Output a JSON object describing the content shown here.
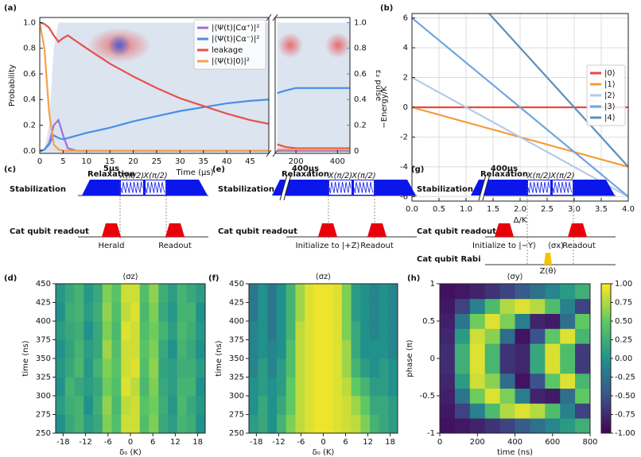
{
  "chart_data": [
    {
      "panel": "(a)",
      "type": "line",
      "xlabel": "Time (μs)",
      "ylabel": "Probability",
      "y2label": "ε₂ pulse",
      "y2color": "#4a8ee8",
      "x": [
        0,
        1,
        2,
        3,
        4,
        5,
        6,
        8,
        10,
        15,
        20,
        25,
        30,
        35,
        40,
        45,
        49,
        110,
        150,
        200,
        300,
        400,
        460
      ],
      "xlims": [
        [
          0,
          49
        ],
        [
          100,
          460
        ]
      ],
      "xticks": [
        0,
        5,
        10,
        15,
        20,
        25,
        30,
        35,
        40,
        45,
        200,
        400
      ],
      "ylim": [
        -0.02,
        1.04
      ],
      "yticks": [
        {
          "value": 0,
          "label": "0.0"
        },
        0.2,
        0.4,
        0.6,
        0.8,
        {
          "value": 1,
          "label": "1.0"
        }
      ],
      "y2lim": [
        -0.02,
        1.04
      ],
      "y2ticks": [
        0,
        0.2,
        0.4,
        0.6,
        0.8,
        {
          "value": 1,
          "label": "1.0"
        }
      ],
      "legend": "upper right",
      "pulse": {
        "color": "#dbe4ef",
        "axis": "y2",
        "values": [
          0,
          0,
          0.2,
          0.8,
          1,
          1,
          1,
          1,
          1,
          1,
          1,
          1,
          1,
          1,
          1,
          1,
          1,
          1,
          1,
          1,
          1,
          1,
          1
        ]
      },
      "series": [
        {
          "name": "|⟨Ψ(t)|Cα⁺⟩|²",
          "color": "#a070dc",
          "values": [
            0,
            0.01,
            0.06,
            0.2,
            0.24,
            0.12,
            0.02,
            0,
            0,
            0,
            0,
            0,
            0,
            0,
            0,
            0,
            0,
            0,
            0,
            0,
            0,
            0,
            0
          ]
        },
        {
          "name": "|⟨Ψ(t)|Cα⁻⟩|²",
          "color": "#4a8ee8",
          "values": [
            0,
            0.01,
            0.05,
            0.12,
            0.1,
            0.09,
            0.1,
            0.12,
            0.14,
            0.18,
            0.23,
            0.27,
            0.31,
            0.34,
            0.37,
            0.39,
            0.4,
            0.45,
            0.47,
            0.49,
            0.49,
            0.49,
            0.49
          ]
        },
        {
          "name": "leakage",
          "color": "#e8504a",
          "values": [
            1,
            0.99,
            0.96,
            0.9,
            0.85,
            0.88,
            0.9,
            0.85,
            0.8,
            0.68,
            0.58,
            0.49,
            0.41,
            0.35,
            0.29,
            0.24,
            0.21,
            0.05,
            0.03,
            0.02,
            0.02,
            0.02,
            0.02
          ]
        },
        {
          "name": "|⟨Ψ(t)|0⟩|²",
          "color": "#f5a04a",
          "values": [
            1,
            0.8,
            0.3,
            0.05,
            0.01,
            0,
            0,
            0,
            0,
            0,
            0,
            0,
            0,
            0,
            0,
            0,
            0,
            0.01,
            0.01,
            0.01,
            0.01,
            0.01,
            0.01
          ]
        }
      ]
    },
    {
      "panel": "(b)",
      "type": "line",
      "xlabel": "Δ/K",
      "ylabel": "−Energy/K",
      "grid": true,
      "x": [
        0,
        4
      ],
      "xlim": [
        0,
        4
      ],
      "xticks": [
        {
          "value": 0,
          "label": "0.0"
        },
        0.5,
        {
          "value": 1,
          "label": "1.0"
        },
        1.5,
        {
          "value": 2,
          "label": "2.0"
        },
        2.5,
        {
          "value": 3,
          "label": "3.0"
        },
        3.5,
        {
          "value": 4,
          "label": "4.0"
        }
      ],
      "ylim": [
        -6.3,
        6.3
      ],
      "yticks": [
        -6,
        -4,
        -2,
        0,
        2,
        4,
        6
      ],
      "legend": "center right",
      "series": [
        {
          "name": "|0⟩",
          "color": "#e8473f",
          "values": [
            0,
            0
          ]
        },
        {
          "name": "|1⟩",
          "color": "#f39c3c",
          "values": [
            0,
            -4
          ]
        },
        {
          "name": "|2⟩",
          "color": "#b4cbe6",
          "values": [
            2,
            -6
          ]
        },
        {
          "name": "|3⟩",
          "color": "#6fa5e0",
          "values": [
            6,
            -6
          ]
        },
        {
          "name": "|4⟩",
          "color": "#5a8fbd",
          "values": [
            12,
            -4
          ]
        }
      ]
    },
    {
      "panel": "(d)",
      "type": "heatmap",
      "title": "⟨σz⟩",
      "xlabel": "δ₀ (K)",
      "ylabel": "time (ns)",
      "xlim": [
        -20,
        20
      ],
      "ylim": [
        250,
        450
      ],
      "xticks": [
        -18,
        -12,
        -6,
        0,
        6,
        12,
        18
      ],
      "yticks": [
        250,
        275,
        300,
        325,
        350,
        375,
        400,
        425,
        450
      ],
      "zlim": [
        -1,
        1
      ],
      "colormap": [
        "#440154",
        "#3b528b",
        "#21918c",
        "#5ec962",
        "#fde725"
      ],
      "x": [
        -18.75,
        -16.25,
        -13.75,
        -11.25,
        -8.75,
        -6.25,
        -3.75,
        -1.25,
        1.25,
        3.75,
        6.25,
        8.75,
        11.25,
        13.75,
        16.25,
        18.75
      ],
      "y": [
        262.5,
        287.5,
        312.5,
        337.5,
        362.5,
        387.5,
        412.5,
        437.5
      ],
      "z": [
        [
          0.0,
          0.2,
          0.3,
          0.1,
          0.2,
          0.6,
          0.4,
          0.85,
          0.85,
          0.4,
          0.6,
          0.2,
          0.1,
          0.3,
          0.25,
          0.0
        ],
        [
          0.1,
          0.25,
          0.3,
          0.0,
          0.25,
          0.65,
          0.35,
          0.8,
          0.85,
          0.45,
          0.55,
          0.25,
          0.05,
          0.35,
          0.2,
          0.05
        ],
        [
          0.0,
          0.3,
          0.2,
          0.1,
          0.2,
          0.55,
          0.4,
          0.9,
          0.8,
          0.35,
          0.6,
          0.2,
          0.1,
          0.3,
          0.3,
          0.0
        ],
        [
          0.05,
          0.2,
          0.35,
          0.05,
          0.3,
          0.6,
          0.45,
          0.85,
          0.9,
          0.4,
          0.65,
          0.15,
          0.1,
          0.25,
          0.25,
          0.1
        ],
        [
          0.0,
          0.15,
          0.3,
          0.1,
          0.2,
          0.7,
          0.4,
          0.85,
          0.85,
          0.45,
          0.6,
          0.2,
          0.0,
          0.3,
          0.2,
          0.0
        ],
        [
          0.1,
          0.2,
          0.25,
          0.0,
          0.2,
          0.6,
          0.35,
          0.9,
          0.85,
          0.4,
          0.55,
          0.3,
          0.1,
          0.35,
          0.25,
          0.05
        ],
        [
          0.0,
          0.25,
          0.3,
          0.1,
          0.25,
          0.65,
          0.4,
          0.8,
          0.9,
          0.35,
          0.6,
          0.2,
          0.05,
          0.3,
          0.3,
          0.0
        ],
        [
          0.05,
          0.2,
          0.3,
          0.05,
          0.2,
          0.6,
          0.45,
          0.85,
          0.85,
          0.4,
          0.65,
          0.25,
          0.1,
          0.3,
          0.2,
          0.1
        ]
      ]
    },
    {
      "panel": "(f)",
      "type": "heatmap",
      "title": "⟨σz⟩",
      "xlabel": "δ₀ (K)",
      "ylabel": "time (ns)",
      "xlim": [
        -20,
        20
      ],
      "ylim": [
        250,
        450
      ],
      "xticks": [
        -18,
        -12,
        -6,
        0,
        6,
        12,
        18
      ],
      "yticks": [
        250,
        275,
        300,
        325,
        350,
        375,
        400,
        425,
        450
      ],
      "zlim": [
        -1,
        1
      ],
      "colormap": [
        "#440154",
        "#3b528b",
        "#21918c",
        "#5ec962",
        "#fde725"
      ],
      "x": [
        -18.75,
        -16.25,
        -13.75,
        -11.25,
        -8.75,
        -6.25,
        -3.75,
        -1.25,
        1.25,
        3.75,
        6.25,
        8.75,
        11.25,
        13.75,
        16.25,
        18.75
      ],
      "y": [
        262.5,
        287.5,
        312.5,
        337.5,
        362.5,
        387.5,
        412.5,
        437.5
      ],
      "z": [
        [
          0.1,
          0.2,
          0.0,
          0.3,
          0.6,
          0.8,
          0.9,
          0.95,
          0.95,
          0.9,
          0.85,
          0.8,
          0.6,
          0.3,
          0.2,
          0.1
        ],
        [
          0.0,
          0.2,
          0.0,
          0.2,
          0.5,
          0.8,
          0.9,
          0.95,
          0.95,
          0.9,
          0.85,
          0.7,
          0.5,
          0.2,
          0.2,
          0.1
        ],
        [
          0.0,
          0.1,
          0.0,
          0.1,
          0.5,
          0.8,
          0.9,
          0.95,
          0.95,
          0.9,
          0.8,
          0.5,
          0.3,
          0.1,
          0.1,
          0.0
        ],
        [
          -0.1,
          0.1,
          -0.1,
          0.1,
          0.4,
          0.8,
          0.9,
          0.95,
          0.95,
          0.9,
          0.7,
          0.3,
          0.1,
          0.0,
          0.1,
          0.0
        ],
        [
          -0.1,
          0.0,
          -0.1,
          0.0,
          0.4,
          0.8,
          0.9,
          0.95,
          0.95,
          0.9,
          0.7,
          0.2,
          0.0,
          0.0,
          0.0,
          -0.1
        ],
        [
          -0.1,
          0.0,
          -0.2,
          0.0,
          0.3,
          0.8,
          0.9,
          0.95,
          0.95,
          0.9,
          0.6,
          0.2,
          0.0,
          -0.1,
          0.0,
          -0.1
        ],
        [
          -0.2,
          0.0,
          -0.2,
          0.0,
          0.3,
          0.7,
          0.9,
          0.95,
          0.95,
          0.9,
          0.6,
          0.1,
          0.0,
          -0.1,
          0.0,
          -0.1
        ],
        [
          -0.2,
          0.0,
          -0.2,
          0.0,
          0.3,
          0.7,
          0.9,
          0.95,
          0.95,
          0.9,
          0.6,
          0.1,
          0.0,
          -0.1,
          0.0,
          -0.1
        ]
      ]
    },
    {
      "panel": "(h)",
      "type": "heatmap",
      "title": "⟨σy⟩",
      "xlabel": "time (ns)",
      "ylabel": "phase (π)",
      "xlim": [
        0,
        800
      ],
      "ylim": [
        -1,
        1
      ],
      "xticks": [
        0,
        200,
        400,
        600,
        800
      ],
      "yticks": [
        -1,
        -0.5,
        0,
        0.5,
        1
      ],
      "zlim": [
        -1,
        1
      ],
      "colormap": [
        "#440154",
        "#3b528b",
        "#21918c",
        "#5ec962",
        "#fde725"
      ],
      "colorbar_ticks": [
        {
          "value": -1,
          "label": "-1.00"
        },
        -0.75,
        {
          "value": -0.5,
          "label": "-0.50"
        },
        -0.25,
        {
          "value": 0,
          "label": "0.00"
        },
        0.25,
        {
          "value": 0.5,
          "label": "0.50"
        },
        0.75,
        {
          "value": 1,
          "label": "1.00"
        }
      ],
      "x": [
        40,
        120,
        200,
        280,
        360,
        440,
        520,
        600,
        680,
        760
      ],
      "y": [
        -0.9,
        -0.7,
        -0.5,
        -0.3,
        -0.1,
        0.1,
        0.3,
        0.5,
        0.7,
        0.9
      ],
      "z": [
        [
          -0.9,
          -0.86,
          -0.79,
          -0.7,
          -0.58,
          -0.42,
          -0.26,
          -0.09,
          0.08,
          0.26
        ],
        [
          -0.86,
          -0.59,
          -0.13,
          0.37,
          0.76,
          0.9,
          0.77,
          0.38,
          -0.13,
          -0.59
        ],
        [
          -0.81,
          -0.22,
          0.55,
          0.9,
          0.59,
          -0.15,
          -0.78,
          -0.84,
          -0.27,
          0.5
        ],
        [
          -0.77,
          0.09,
          0.85,
          0.64,
          -0.29,
          -0.89,
          -0.49,
          0.47,
          0.9,
          0.32
        ],
        [
          -0.73,
          0.26,
          0.9,
          0.32,
          -0.69,
          -0.77,
          0.19,
          0.89,
          0.38,
          -0.65
        ],
        [
          -0.73,
          0.26,
          0.9,
          0.32,
          -0.69,
          -0.77,
          0.19,
          0.89,
          0.38,
          -0.65
        ],
        [
          -0.77,
          0.09,
          0.85,
          0.64,
          -0.29,
          -0.89,
          -0.49,
          0.47,
          0.9,
          0.32
        ],
        [
          -0.81,
          -0.22,
          0.55,
          0.9,
          0.59,
          -0.15,
          -0.78,
          -0.84,
          -0.27,
          0.5
        ],
        [
          -0.86,
          -0.59,
          -0.13,
          0.37,
          0.76,
          0.9,
          0.77,
          0.38,
          -0.13,
          -0.59
        ],
        [
          -0.9,
          -0.86,
          -0.79,
          -0.7,
          -0.58,
          -0.42,
          -0.26,
          -0.09,
          0.08,
          0.26
        ]
      ]
    }
  ],
  "diagrams": [
    {
      "panel": "(c)",
      "rows": [
        "Stabilization",
        "Cat qubit readout"
      ],
      "relax_time": "5μs",
      "relax": "Relaxation",
      "gates": [
        "X(π/2)",
        "X(π/2)"
      ],
      "labels": [
        "Herald",
        "Readout"
      ]
    },
    {
      "panel": "(e)",
      "rows": [
        "Stabilization",
        "Cat qubit readout"
      ],
      "relax_time": "400μs",
      "relax": "Relaxation",
      "gates": [
        "X(π/2)",
        "X(π/2)"
      ],
      "labels": [
        "Initialize to |+Z⟩",
        "Readout"
      ]
    },
    {
      "panel": "(g)",
      "rows": [
        "Stabilization",
        "Cat qubit readout",
        "Cat qubit Rabi"
      ],
      "relax_time": "400μs",
      "relax": "Relaxation",
      "gates": [
        "X(π/2)",
        "X(π/2)"
      ],
      "labels": [
        "Initialize to |−Y⟩",
        "⟨σx⟩",
        "Readout"
      ],
      "rabi": "Z(θ)"
    }
  ]
}
